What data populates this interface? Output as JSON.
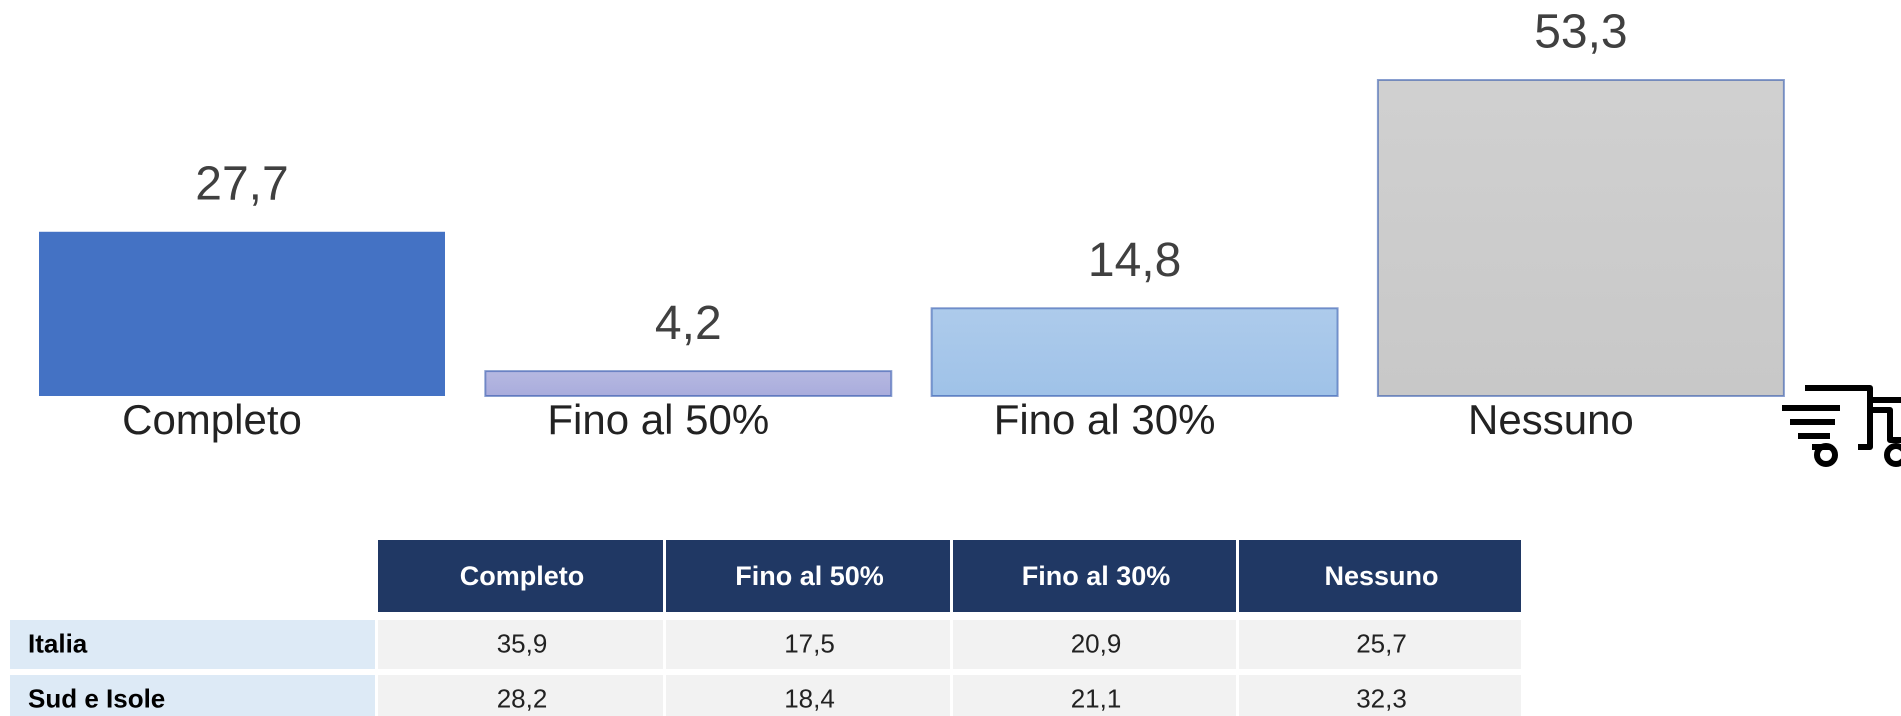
{
  "chart_data": {
    "type": "bar",
    "categories": [
      "Completo",
      "Fino al 50%",
      "Fino al 30%",
      "Nessuno"
    ],
    "values": [
      27.7,
      4.2,
      14.8,
      53.3
    ],
    "value_labels": [
      "27,7",
      "4,2",
      "14,8",
      "53,3"
    ],
    "colors": [
      "#4472c4",
      "#a9acdc",
      "#9fc2e8",
      "#c8c8c8"
    ]
  },
  "table": {
    "header": [
      "Completo",
      "Fino al 50%",
      "Fino al 30%",
      "Nessuno"
    ],
    "rows": [
      [
        "Italia",
        "35,9",
        "17,5",
        "20,9",
        "25,7"
      ],
      [
        "Sud e Isole",
        "28,2",
        "18,4",
        "21,1",
        "32,3"
      ]
    ]
  }
}
